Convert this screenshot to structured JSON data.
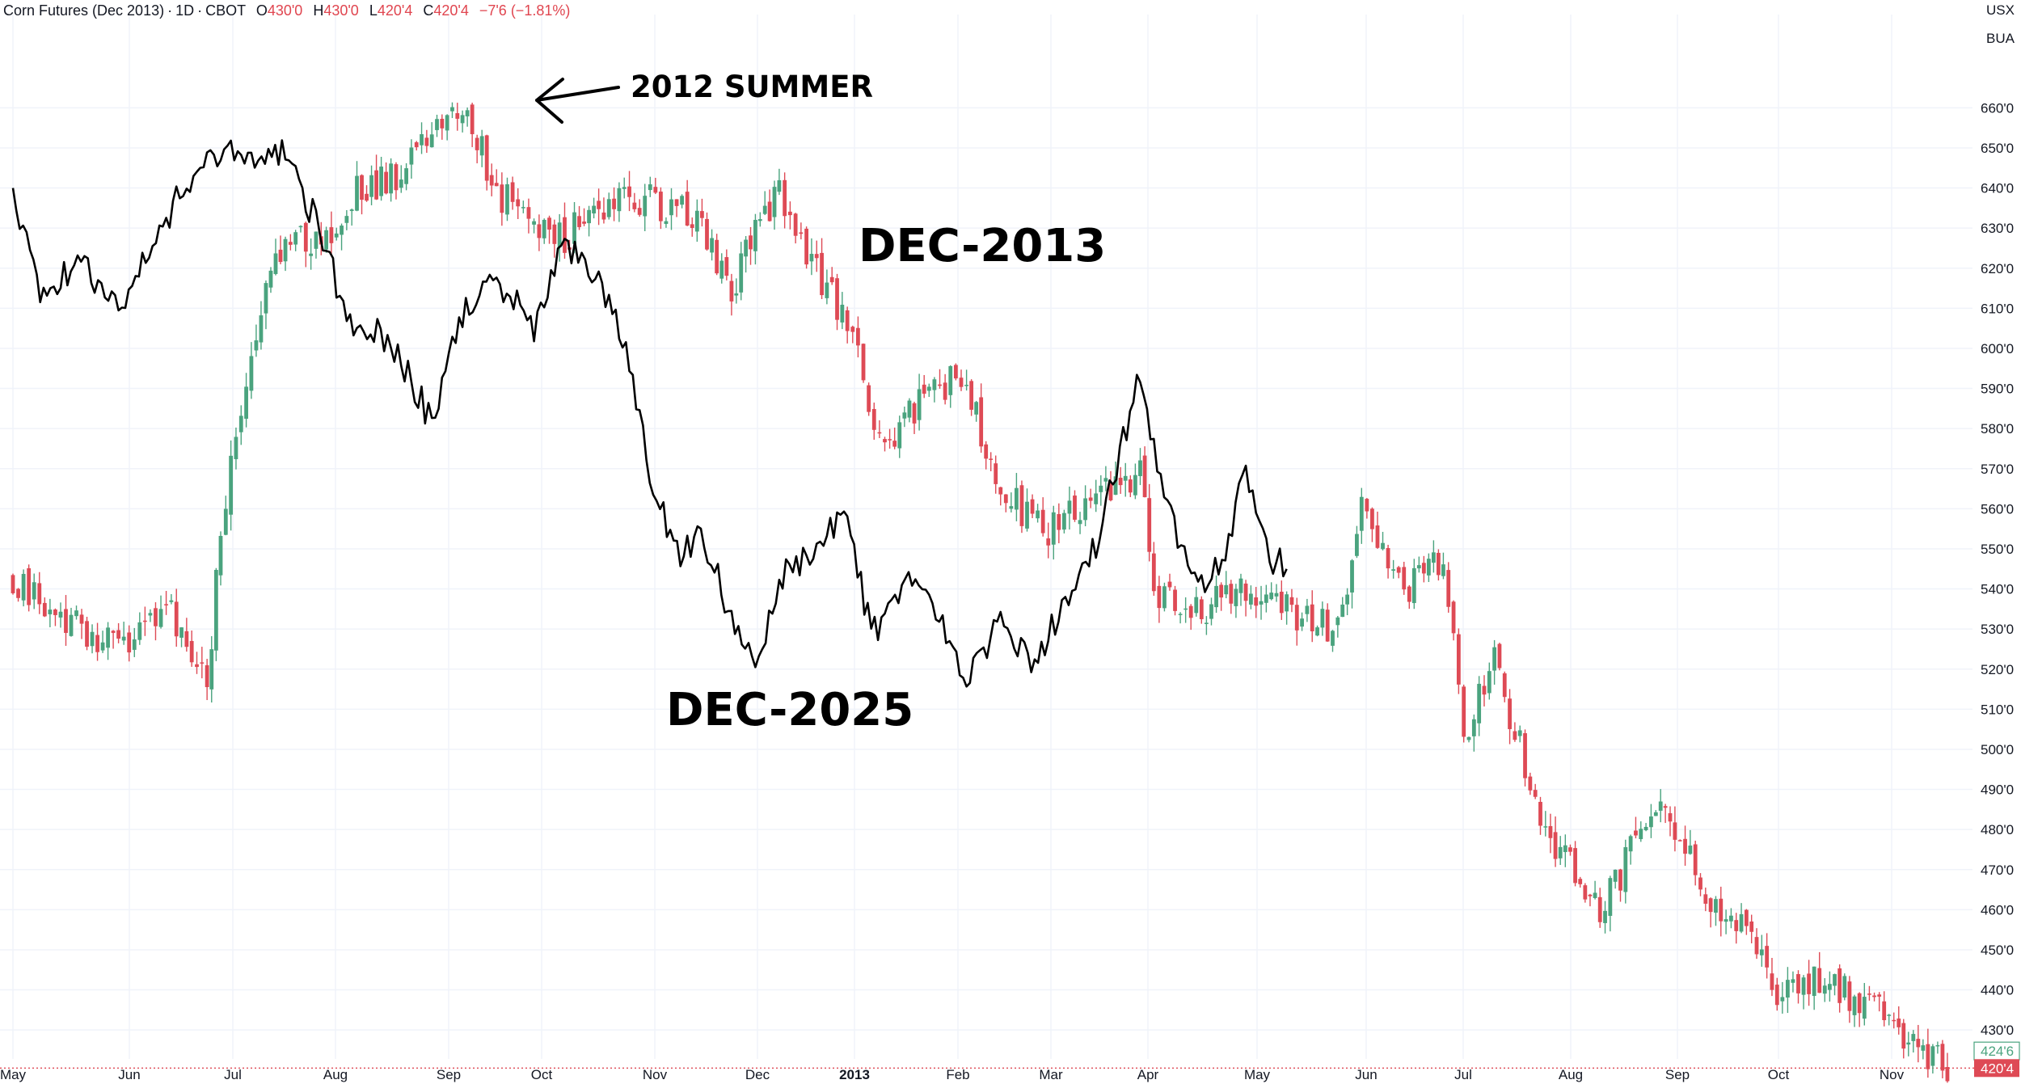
{
  "header": {
    "symbol": "Corn Futures (Dec 2013)",
    "interval": "1D",
    "exchange": "CBOT",
    "open_label": "O",
    "open": "430'0",
    "high_label": "H",
    "high": "430'0",
    "low_label": "L",
    "low": "420'4",
    "close_label": "C",
    "close": "420'4",
    "change": "−7'6 (−1.81%)"
  },
  "units": {
    "currency": "USX",
    "unit": "BUA"
  },
  "annotations": {
    "summer": "2012 SUMMER",
    "dec2013": "DEC-2013",
    "dec2025": "DEC-2025"
  },
  "colors": {
    "up": "#4aa37e",
    "down": "#de4a55",
    "overlay_line": "#000000",
    "grid": "#f0f3fa"
  },
  "chart_data": {
    "type": "line",
    "title": "",
    "ylim": [
      416,
      673
    ],
    "y_ticks": [
      "660'0",
      "650'0",
      "640'0",
      "630'0",
      "620'0",
      "610'0",
      "600'0",
      "590'0",
      "580'0",
      "570'0",
      "560'0",
      "550'0",
      "540'0",
      "530'0",
      "520'0",
      "510'0",
      "500'0",
      "490'0",
      "480'0",
      "470'0",
      "460'0",
      "450'0",
      "440'0",
      "430'0"
    ],
    "x_labels": [
      "May",
      "Jun",
      "Jul",
      "Aug",
      "Sep",
      "Oct",
      "Nov",
      "Dec",
      "2013",
      "Feb",
      "Mar",
      "Apr",
      "May",
      "Jun",
      "Jul",
      "Aug",
      "Sep",
      "Oct",
      "Nov"
    ],
    "price_labels": {
      "marked": "424'6",
      "last": "420'4"
    },
    "series": [
      {
        "name": "DEC-2013",
        "style": "candlestick",
        "points": [
          [
            "2012-05-01",
            542
          ],
          [
            "2012-05-15",
            533
          ],
          [
            "2012-06-01",
            525
          ],
          [
            "2012-06-15",
            538
          ],
          [
            "2012-06-27",
            515
          ],
          [
            "2012-07-01",
            555
          ],
          [
            "2012-07-10",
            600
          ],
          [
            "2012-07-20",
            628
          ],
          [
            "2012-08-01",
            625
          ],
          [
            "2012-08-10",
            640
          ],
          [
            "2012-08-20",
            642
          ],
          [
            "2012-09-01",
            653
          ],
          [
            "2012-09-10",
            660
          ],
          [
            "2012-09-20",
            640
          ],
          [
            "2012-10-01",
            628
          ],
          [
            "2012-10-10",
            628
          ],
          [
            "2012-10-20",
            635
          ],
          [
            "2012-11-01",
            637
          ],
          [
            "2012-11-15",
            635
          ],
          [
            "2012-11-28",
            615
          ],
          [
            "2012-12-05",
            630
          ],
          [
            "2012-12-12",
            640
          ],
          [
            "2012-12-20",
            625
          ],
          [
            "2013-01-01",
            605
          ],
          [
            "2013-01-12",
            575
          ],
          [
            "2013-01-25",
            590
          ],
          [
            "2013-02-05",
            592
          ],
          [
            "2013-02-15",
            564
          ],
          [
            "2013-03-01",
            555
          ],
          [
            "2013-03-15",
            562
          ],
          [
            "2013-03-28",
            570
          ],
          [
            "2013-04-01",
            540
          ],
          [
            "2013-04-15",
            535
          ],
          [
            "2013-04-28",
            540
          ],
          [
            "2013-05-10",
            535
          ],
          [
            "2013-05-25",
            530
          ],
          [
            "2013-06-01",
            560
          ],
          [
            "2013-06-15",
            540
          ],
          [
            "2013-06-25",
            548
          ],
          [
            "2013-07-01",
            503
          ],
          [
            "2013-07-10",
            522
          ],
          [
            "2013-07-25",
            480
          ],
          [
            "2013-08-10",
            458
          ],
          [
            "2013-08-25",
            485
          ],
          [
            "2013-09-01",
            480
          ],
          [
            "2013-09-10",
            465
          ],
          [
            "2013-09-25",
            452
          ],
          [
            "2013-10-01",
            440
          ],
          [
            "2013-10-15",
            442
          ],
          [
            "2013-10-31",
            435
          ],
          [
            "2013-11-10",
            426
          ],
          [
            "2013-11-20",
            420.5
          ]
        ]
      },
      {
        "name": "DEC-2025",
        "style": "line",
        "points": [
          [
            "2012-05-01",
            640
          ],
          [
            "2012-05-10",
            612
          ],
          [
            "2012-05-20",
            622
          ],
          [
            "2012-06-01",
            610
          ],
          [
            "2012-06-10",
            625
          ],
          [
            "2012-06-20",
            640
          ],
          [
            "2012-07-01",
            650
          ],
          [
            "2012-07-10",
            645
          ],
          [
            "2012-07-20",
            650
          ],
          [
            "2012-08-01",
            625
          ],
          [
            "2012-08-08",
            605
          ],
          [
            "2012-08-15",
            605
          ],
          [
            "2012-08-25",
            594
          ],
          [
            "2012-09-01",
            581
          ],
          [
            "2012-09-10",
            608
          ],
          [
            "2012-09-20",
            617
          ],
          [
            "2012-10-01",
            605
          ],
          [
            "2012-10-10",
            627
          ],
          [
            "2012-10-20",
            617
          ],
          [
            "2012-10-28",
            600
          ],
          [
            "2012-11-05",
            565
          ],
          [
            "2012-11-12",
            548
          ],
          [
            "2012-11-20",
            553
          ],
          [
            "2012-11-28",
            532
          ],
          [
            "2012-12-05",
            519
          ],
          [
            "2012-12-12",
            542
          ],
          [
            "2012-12-20",
            548
          ],
          [
            "2013-01-01",
            560
          ],
          [
            "2013-01-08",
            528
          ],
          [
            "2013-01-18",
            543
          ],
          [
            "2013-01-28",
            532
          ],
          [
            "2013-02-05",
            516
          ],
          [
            "2013-02-15",
            532
          ],
          [
            "2013-02-25",
            522
          ],
          [
            "2013-03-05",
            535
          ],
          [
            "2013-03-15",
            550
          ],
          [
            "2013-03-28",
            593
          ],
          [
            "2013-04-05",
            560
          ],
          [
            "2013-04-15",
            540
          ],
          [
            "2013-04-22",
            548
          ],
          [
            "2013-04-28",
            570
          ],
          [
            "2013-05-05",
            548
          ],
          [
            "2013-05-10",
            545
          ]
        ]
      }
    ]
  }
}
